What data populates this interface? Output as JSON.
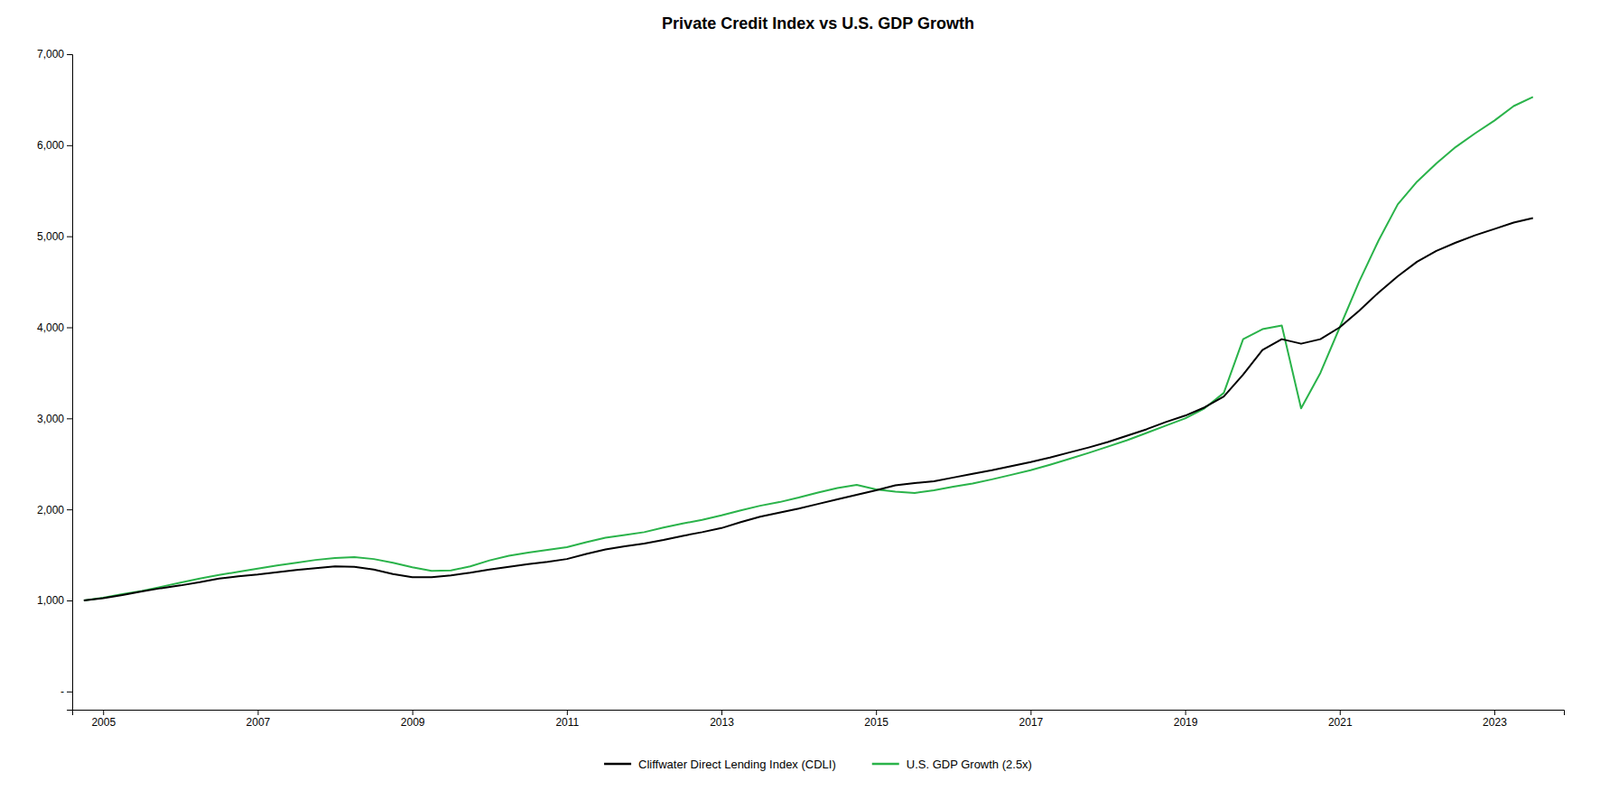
{
  "chart_data": {
    "type": "line",
    "title": "Private Credit Index vs U.S. GDP Growth",
    "x": [
      2004.75,
      2005.0,
      2005.25,
      2005.5,
      2005.75,
      2006.0,
      2006.25,
      2006.5,
      2006.75,
      2007.0,
      2007.25,
      2007.5,
      2007.75,
      2008.0,
      2008.25,
      2008.5,
      2008.75,
      2009.0,
      2009.25,
      2009.5,
      2009.75,
      2010.0,
      2010.25,
      2010.5,
      2010.75,
      2011.0,
      2011.25,
      2011.5,
      2011.75,
      2012.0,
      2012.25,
      2012.5,
      2012.75,
      2013.0,
      2013.25,
      2013.5,
      2013.75,
      2014.0,
      2014.25,
      2014.5,
      2014.75,
      2015.0,
      2015.25,
      2015.5,
      2015.75,
      2016.0,
      2016.25,
      2016.5,
      2016.75,
      2017.0,
      2017.25,
      2017.5,
      2017.75,
      2018.0,
      2018.25,
      2018.5,
      2018.75,
      2019.0,
      2019.25,
      2019.5,
      2019.75,
      2020.0,
      2020.25,
      2020.5,
      2020.75,
      2021.0,
      2021.25,
      2021.5,
      2021.75,
      2022.0,
      2022.25,
      2022.5,
      2022.75,
      2023.0,
      2023.25,
      2023.5
    ],
    "series": [
      {
        "name": "Cliffwater Direct Lending Index (CDLI)",
        "color": "#000000",
        "values": [
          1000,
          1025,
          1060,
          1100,
          1135,
          1165,
          1200,
          1240,
          1265,
          1285,
          1310,
          1335,
          1355,
          1375,
          1370,
          1340,
          1290,
          1255,
          1255,
          1275,
          1305,
          1340,
          1370,
          1400,
          1425,
          1455,
          1510,
          1560,
          1595,
          1625,
          1665,
          1710,
          1750,
          1795,
          1860,
          1920,
          1965,
          2010,
          2060,
          2110,
          2160,
          2210,
          2265,
          2290,
          2310,
          2350,
          2390,
          2430,
          2475,
          2520,
          2570,
          2625,
          2680,
          2740,
          2810,
          2880,
          2960,
          3030,
          3120,
          3240,
          3480,
          3750,
          3870,
          3820,
          3870,
          4000,
          4180,
          4380,
          4560,
          4720,
          4840,
          4930,
          5010,
          5080,
          5150,
          5200
        ]
      },
      {
        "name": "U.S. GDP Growth (2.5x)",
        "color": "#2ab34a",
        "values": [
          1000,
          1030,
          1070,
          1105,
          1150,
          1195,
          1240,
          1280,
          1315,
          1350,
          1385,
          1415,
          1445,
          1465,
          1475,
          1455,
          1415,
          1365,
          1325,
          1330,
          1375,
          1440,
          1490,
          1525,
          1555,
          1585,
          1640,
          1690,
          1720,
          1750,
          1800,
          1845,
          1885,
          1935,
          1990,
          2040,
          2080,
          2130,
          2185,
          2235,
          2270,
          2220,
          2195,
          2180,
          2210,
          2250,
          2285,
          2330,
          2380,
          2430,
          2490,
          2555,
          2620,
          2690,
          2760,
          2840,
          2920,
          3000,
          3110,
          3280,
          3870,
          3980,
          4020,
          3110,
          3500,
          4000,
          4500,
          4950,
          5350,
          5600,
          5800,
          5980,
          6130,
          6270,
          6430,
          6530
        ]
      }
    ],
    "xlim": [
      2004.6,
      2023.9
    ],
    "ylim": [
      -200,
      7000
    ],
    "xticks": [
      2005,
      2007,
      2009,
      2011,
      2013,
      2015,
      2017,
      2019,
      2021,
      2023
    ],
    "yticks": [
      {
        "value": 0,
        "label": "-"
      },
      {
        "value": 1000,
        "label": "1,000"
      },
      {
        "value": 2000,
        "label": "2,000"
      },
      {
        "value": 3000,
        "label": "3,000"
      },
      {
        "value": 4000,
        "label": "4,000"
      },
      {
        "value": 5000,
        "label": "5,000"
      },
      {
        "value": 6000,
        "label": "6,000"
      },
      {
        "value": 7000,
        "label": "7,000"
      }
    ],
    "grid": false,
    "legend": "bottom"
  }
}
